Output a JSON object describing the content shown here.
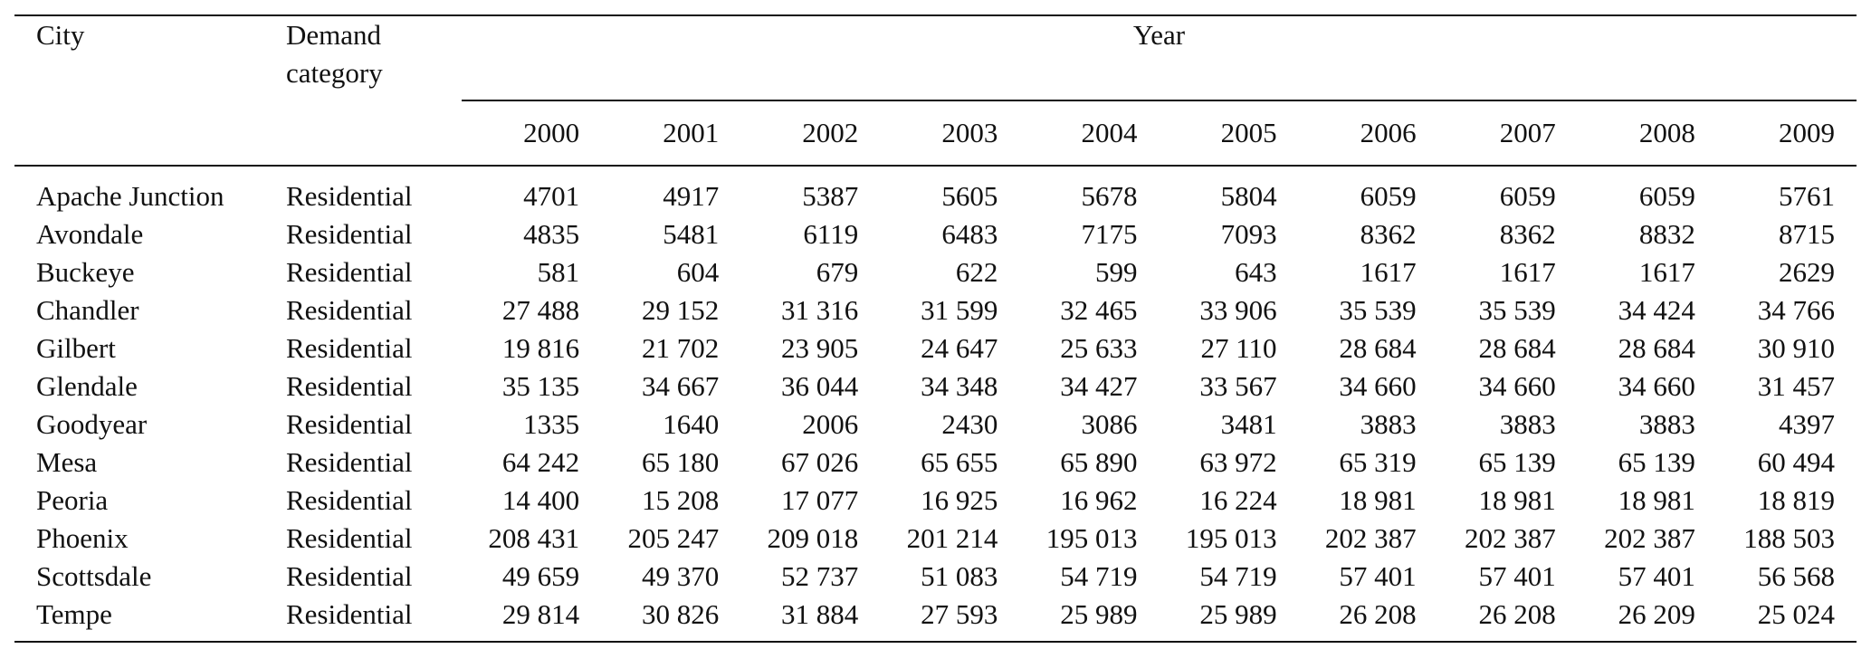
{
  "table": {
    "header": {
      "city": "City",
      "category_line1": "Demand",
      "category_line2": "category",
      "year_group": "Year",
      "years": [
        "2000",
        "2001",
        "2002",
        "2003",
        "2004",
        "2005",
        "2006",
        "2007",
        "2008",
        "2009"
      ]
    },
    "rows": [
      {
        "city": "Apache Junction",
        "category": "Residential",
        "values": [
          "4701",
          "4917",
          "5387",
          "5605",
          "5678",
          "5804",
          "6059",
          "6059",
          "6059",
          "5761"
        ]
      },
      {
        "city": "Avondale",
        "category": "Residential",
        "values": [
          "4835",
          "5481",
          "6119",
          "6483",
          "7175",
          "7093",
          "8362",
          "8362",
          "8832",
          "8715"
        ]
      },
      {
        "city": "Buckeye",
        "category": "Residential",
        "values": [
          "581",
          "604",
          "679",
          "622",
          "599",
          "643",
          "1617",
          "1617",
          "1617",
          "2629"
        ]
      },
      {
        "city": "Chandler",
        "category": "Residential",
        "values": [
          "27 488",
          "29 152",
          "31 316",
          "31 599",
          "32 465",
          "33 906",
          "35 539",
          "35 539",
          "34 424",
          "34 766"
        ]
      },
      {
        "city": "Gilbert",
        "category": "Residential",
        "values": [
          "19 816",
          "21 702",
          "23 905",
          "24 647",
          "25 633",
          "27 110",
          "28 684",
          "28 684",
          "28 684",
          "30 910"
        ]
      },
      {
        "city": "Glendale",
        "category": "Residential",
        "values": [
          "35 135",
          "34 667",
          "36 044",
          "34 348",
          "34 427",
          "33 567",
          "34 660",
          "34 660",
          "34 660",
          "31 457"
        ]
      },
      {
        "city": "Goodyear",
        "category": "Residential",
        "values": [
          "1335",
          "1640",
          "2006",
          "2430",
          "3086",
          "3481",
          "3883",
          "3883",
          "3883",
          "4397"
        ]
      },
      {
        "city": "Mesa",
        "category": "Residential",
        "values": [
          "64 242",
          "65 180",
          "67 026",
          "65 655",
          "65 890",
          "63 972",
          "65 319",
          "65 139",
          "65 139",
          "60 494"
        ]
      },
      {
        "city": "Peoria",
        "category": "Residential",
        "values": [
          "14 400",
          "15 208",
          "17 077",
          "16 925",
          "16 962",
          "16 224",
          "18 981",
          "18 981",
          "18 981",
          "18 819"
        ]
      },
      {
        "city": "Phoenix",
        "category": "Residential",
        "values": [
          "208 431",
          "205 247",
          "209 018",
          "201 214",
          "195 013",
          "195 013",
          "202 387",
          "202 387",
          "202 387",
          "188 503"
        ]
      },
      {
        "city": "Scottsdale",
        "category": "Residential",
        "values": [
          "49 659",
          "49 370",
          "52 737",
          "51 083",
          "54 719",
          "54 719",
          "57 401",
          "57 401",
          "57 401",
          "56 568"
        ]
      },
      {
        "city": "Tempe",
        "category": "Residential",
        "values": [
          "29 814",
          "30 826",
          "31 884",
          "27 593",
          "25 989",
          "25 989",
          "26 208",
          "26 208",
          "26 209",
          "25 024"
        ]
      }
    ]
  }
}
